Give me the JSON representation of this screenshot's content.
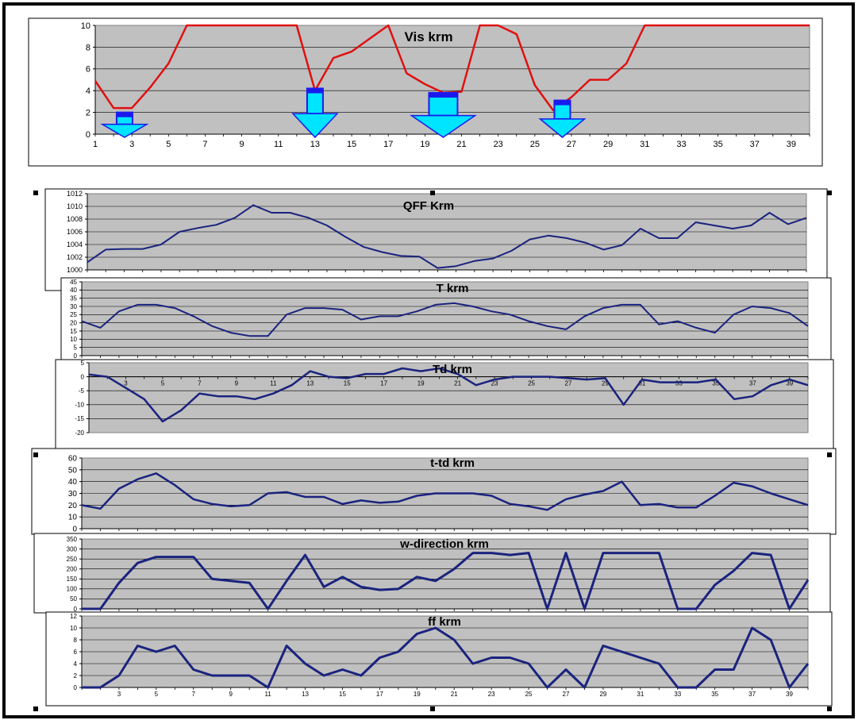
{
  "chart_data": [
    {
      "type": "line",
      "title": "Vis krm",
      "x": [
        1,
        2,
        3,
        4,
        5,
        6,
        7,
        8,
        9,
        10,
        11,
        12,
        13,
        14,
        15,
        16,
        17,
        18,
        19,
        20,
        21,
        22,
        23,
        24,
        25,
        26,
        27,
        28,
        29,
        30,
        31,
        32,
        33,
        34,
        35,
        36,
        37,
        38,
        39,
        40
      ],
      "xticks": [
        1,
        3,
        5,
        7,
        9,
        11,
        13,
        15,
        17,
        19,
        21,
        23,
        25,
        27,
        29,
        31,
        33,
        35,
        37,
        39
      ],
      "yticks": [
        0,
        2,
        4,
        6,
        8,
        10
      ],
      "ylim": [
        0,
        10
      ],
      "grid": true,
      "series": [
        {
          "color": "#e01010",
          "values": [
            4.9,
            2.4,
            2.4,
            4.3,
            6.5,
            10,
            10,
            10,
            10,
            10,
            10,
            10,
            4.0,
            7.0,
            7.6,
            8.8,
            10,
            5.6,
            4.6,
            3.8,
            3.9,
            10,
            10,
            9.2,
            4.5,
            2.2,
            3.4,
            5.0,
            5.0,
            6.5,
            10,
            10,
            10,
            10,
            10,
            10,
            10,
            10,
            10,
            10
          ]
        }
      ],
      "markers": [
        {
          "type": "arrow-down",
          "x": 2.6,
          "top": 2.0,
          "color": "#00e5ff",
          "edge": "#1a1aee"
        },
        {
          "type": "arrow-down",
          "x": 13,
          "top": 4.2,
          "color": "#00e5ff",
          "edge": "#1a1aee"
        },
        {
          "type": "arrow-down",
          "x": 20,
          "top": 3.8,
          "color": "#00e5ff",
          "edge": "#1a1aee"
        },
        {
          "type": "arrow-down",
          "x": 26.5,
          "top": 3.1,
          "color": "#00e5ff",
          "edge": "#1a1aee"
        }
      ]
    },
    {
      "type": "line",
      "title": "QFF Krm",
      "x": [
        1,
        2,
        3,
        4,
        5,
        6,
        7,
        8,
        9,
        10,
        11,
        12,
        13,
        14,
        15,
        16,
        17,
        18,
        19,
        20,
        21,
        22,
        23,
        24,
        25,
        26,
        27,
        28,
        29,
        30,
        31,
        32,
        33,
        34,
        35,
        36,
        37,
        38,
        39,
        40
      ],
      "yticks": [
        1000,
        1002,
        1004,
        1006,
        1008,
        1010,
        1012
      ],
      "ylim": [
        1000,
        1012
      ],
      "grid": true,
      "series": [
        {
          "color": "#1a237e",
          "values": [
            1001.2,
            1003.2,
            1003.3,
            1003.3,
            1004,
            1006,
            1006.6,
            1007.1,
            1008.2,
            1010.2,
            1009,
            1009,
            1008.2,
            1007,
            1005.2,
            1003.6,
            1002.8,
            1002.2,
            1002.1,
            1000.3,
            1000.6,
            1001.4,
            1001.8,
            1003,
            1004.8,
            1005.4,
            1005,
            1004.3,
            1003.2,
            1003.9,
            1006.5,
            1005,
            1005,
            1007.5,
            1007,
            1006.5,
            1007,
            1009,
            1007.2,
            1008.2
          ]
        }
      ]
    },
    {
      "type": "line",
      "title": "T krm",
      "x": [
        1,
        2,
        3,
        4,
        5,
        6,
        7,
        8,
        9,
        10,
        11,
        12,
        13,
        14,
        15,
        16,
        17,
        18,
        19,
        20,
        21,
        22,
        23,
        24,
        25,
        26,
        27,
        28,
        29,
        30,
        31,
        32,
        33,
        34,
        35,
        36,
        37,
        38,
        39,
        40
      ],
      "yticks": [
        0,
        5,
        10,
        15,
        20,
        25,
        30,
        35,
        40,
        45
      ],
      "ylim": [
        0,
        45
      ],
      "grid": true,
      "series": [
        {
          "color": "#1a237e",
          "values": [
            21,
            17,
            27,
            31,
            31,
            29,
            24,
            18,
            14,
            12,
            12,
            25,
            29,
            29,
            28,
            22,
            24,
            24,
            27,
            31,
            32,
            30,
            27,
            25,
            21,
            18,
            16,
            24,
            29,
            31,
            31,
            19,
            21,
            17,
            14,
            25,
            30,
            29,
            26,
            18
          ]
        }
      ]
    },
    {
      "type": "line",
      "title": "Td krm",
      "x": [
        1,
        2,
        3,
        4,
        5,
        6,
        7,
        8,
        9,
        10,
        11,
        12,
        13,
        14,
        15,
        16,
        17,
        18,
        19,
        20,
        21,
        22,
        23,
        24,
        25,
        26,
        27,
        28,
        29,
        30,
        31,
        32,
        33,
        34,
        35,
        36,
        37,
        38,
        39,
        40
      ],
      "xticks": [
        3,
        5,
        7,
        9,
        11,
        13,
        15,
        17,
        19,
        21,
        23,
        25,
        27,
        29,
        31,
        33,
        35,
        37,
        39
      ],
      "yticks": [
        -20,
        -15,
        -10,
        -5,
        0,
        5
      ],
      "ylim": [
        -20,
        5
      ],
      "grid": true,
      "series": [
        {
          "color": "#1a237e",
          "values": [
            0.8,
            0,
            -4,
            -8,
            -16,
            -12,
            -6,
            -7,
            -7,
            -8,
            -6,
            -3,
            2,
            0,
            -0.5,
            1,
            1,
            3,
            2,
            3,
            1,
            -3,
            -1,
            0,
            0,
            0,
            -0.5,
            -1,
            -0.5,
            -10,
            -1,
            -2,
            -2,
            -2,
            -1,
            -8,
            -7,
            -3,
            -1,
            -3
          ]
        }
      ]
    },
    {
      "type": "line",
      "title": "t-td krm",
      "x": [
        1,
        2,
        3,
        4,
        5,
        6,
        7,
        8,
        9,
        10,
        11,
        12,
        13,
        14,
        15,
        16,
        17,
        18,
        19,
        20,
        21,
        22,
        23,
        24,
        25,
        26,
        27,
        28,
        29,
        30,
        31,
        32,
        33,
        34,
        35,
        36,
        37,
        38,
        39,
        40
      ],
      "yticks": [
        0,
        10,
        20,
        30,
        40,
        50,
        60
      ],
      "ylim": [
        0,
        60
      ],
      "grid": true,
      "series": [
        {
          "color": "#1a237e",
          "values": [
            20,
            17,
            34,
            42,
            47,
            37,
            25,
            21,
            19,
            20,
            30,
            31,
            27,
            27,
            21,
            24,
            22,
            23,
            28,
            30,
            30,
            30,
            28,
            21,
            19,
            16,
            25,
            29,
            32,
            40,
            20,
            21,
            18,
            18,
            28,
            39,
            36,
            30,
            25,
            20
          ]
        }
      ]
    },
    {
      "type": "line",
      "title": "w-direction krm",
      "x": [
        1,
        2,
        3,
        4,
        5,
        6,
        7,
        8,
        9,
        10,
        11,
        12,
        13,
        14,
        15,
        16,
        17,
        18,
        19,
        20,
        21,
        22,
        23,
        24,
        25,
        26,
        27,
        28,
        29,
        30,
        31,
        32,
        33,
        34,
        35,
        36,
        37,
        38,
        39,
        40
      ],
      "yticks": [
        0,
        50,
        100,
        150,
        200,
        250,
        300,
        350
      ],
      "ylim": [
        0,
        350
      ],
      "grid": true,
      "series": [
        {
          "color": "#1a237e",
          "values": [
            0,
            0,
            130,
            230,
            260,
            260,
            260,
            150,
            140,
            130,
            0,
            140,
            270,
            110,
            160,
            110,
            95,
            100,
            160,
            140,
            200,
            280,
            280,
            270,
            280,
            0,
            280,
            0,
            280,
            280,
            280,
            280,
            0,
            0,
            120,
            190,
            280,
            270,
            0,
            145
          ]
        }
      ]
    },
    {
      "type": "line",
      "title": "ff krm",
      "x": [
        1,
        2,
        3,
        4,
        5,
        6,
        7,
        8,
        9,
        10,
        11,
        12,
        13,
        14,
        15,
        16,
        17,
        18,
        19,
        20,
        21,
        22,
        23,
        24,
        25,
        26,
        27,
        28,
        29,
        30,
        31,
        32,
        33,
        34,
        35,
        36,
        37,
        38,
        39,
        40
      ],
      "xticks": [
        3,
        5,
        7,
        9,
        11,
        13,
        15,
        17,
        19,
        21,
        23,
        25,
        27,
        29,
        31,
        33,
        35,
        37,
        39
      ],
      "yticks": [
        0,
        2,
        4,
        6,
        8,
        10,
        12
      ],
      "ylim": [
        0,
        12
      ],
      "grid": true,
      "series": [
        {
          "color": "#1a237e",
          "values": [
            0,
            0,
            2,
            7,
            6,
            7,
            3,
            2,
            2,
            2,
            0,
            7,
            4,
            2,
            3,
            2,
            5,
            6,
            9,
            10,
            8,
            4,
            5,
            5,
            4,
            0,
            3,
            0,
            7,
            6,
            5,
            4,
            0,
            0,
            3,
            3,
            10,
            8,
            0,
            4
          ]
        }
      ]
    }
  ]
}
